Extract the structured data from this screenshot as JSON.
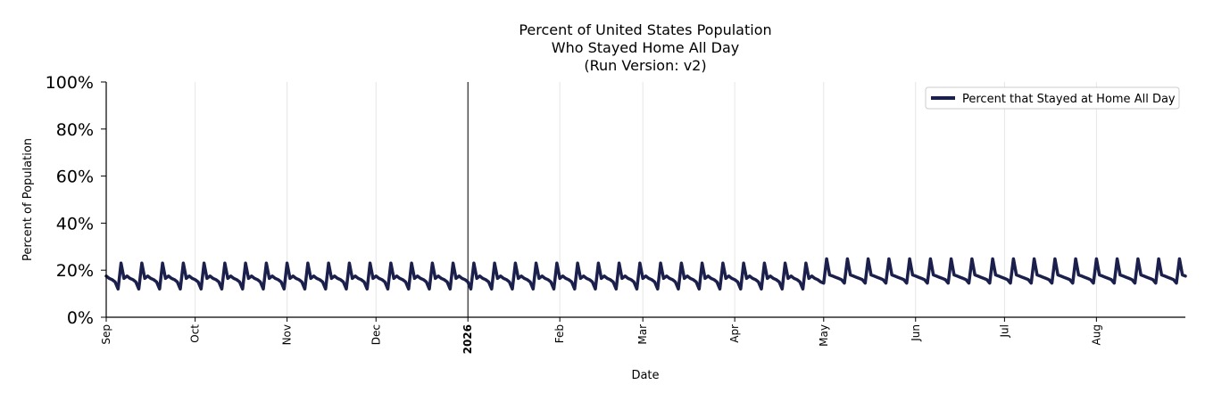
{
  "chart_data": {
    "type": "line",
    "title": [
      "Percent of United States Population",
      "Who Stayed Home All Day",
      "(Run Version: v2)"
    ],
    "xlabel": "Date",
    "ylabel": "Percent of Population",
    "ylim": [
      0,
      100
    ],
    "yticks": [
      "0%",
      "20%",
      "40%",
      "60%",
      "80%",
      "100%"
    ],
    "xlim": [
      "2025-09-01",
      "2026-08-31"
    ],
    "xticks": [
      {
        "label": "Sep",
        "date": "2025-09-01"
      },
      {
        "label": "Oct",
        "date": "2025-10-01"
      },
      {
        "label": "Nov",
        "date": "2025-11-01"
      },
      {
        "label": "Dec",
        "date": "2025-12-01"
      },
      {
        "label": "2026",
        "date": "2026-01-01",
        "bold": true
      },
      {
        "label": "Feb",
        "date": "2026-02-01"
      },
      {
        "label": "Mar",
        "date": "2026-03-01"
      },
      {
        "label": "Apr",
        "date": "2026-04-01"
      },
      {
        "label": "May",
        "date": "2026-05-01"
      },
      {
        "label": "Jun",
        "date": "2026-06-01"
      },
      {
        "label": "Jul",
        "date": "2026-07-01"
      },
      {
        "label": "Aug",
        "date": "2026-08-01"
      }
    ],
    "year_divider": "2026-01-01",
    "grid": "vertical",
    "legend": "top-right",
    "series": [
      {
        "name": "Percent that Stayed at Home All Day",
        "color": "#1b1f4b",
        "start_date": "2025-09-01",
        "period_days": 7,
        "weekly_pattern": [
          17.5,
          16.5,
          16.0,
          15.0,
          12.0,
          23.0,
          16.5
        ],
        "summer_weekly_pattern": [
          17.5,
          17.0,
          16.5,
          16.0,
          14.5,
          24.8,
          18.0
        ],
        "summer_start": "2026-05-01"
      }
    ]
  }
}
